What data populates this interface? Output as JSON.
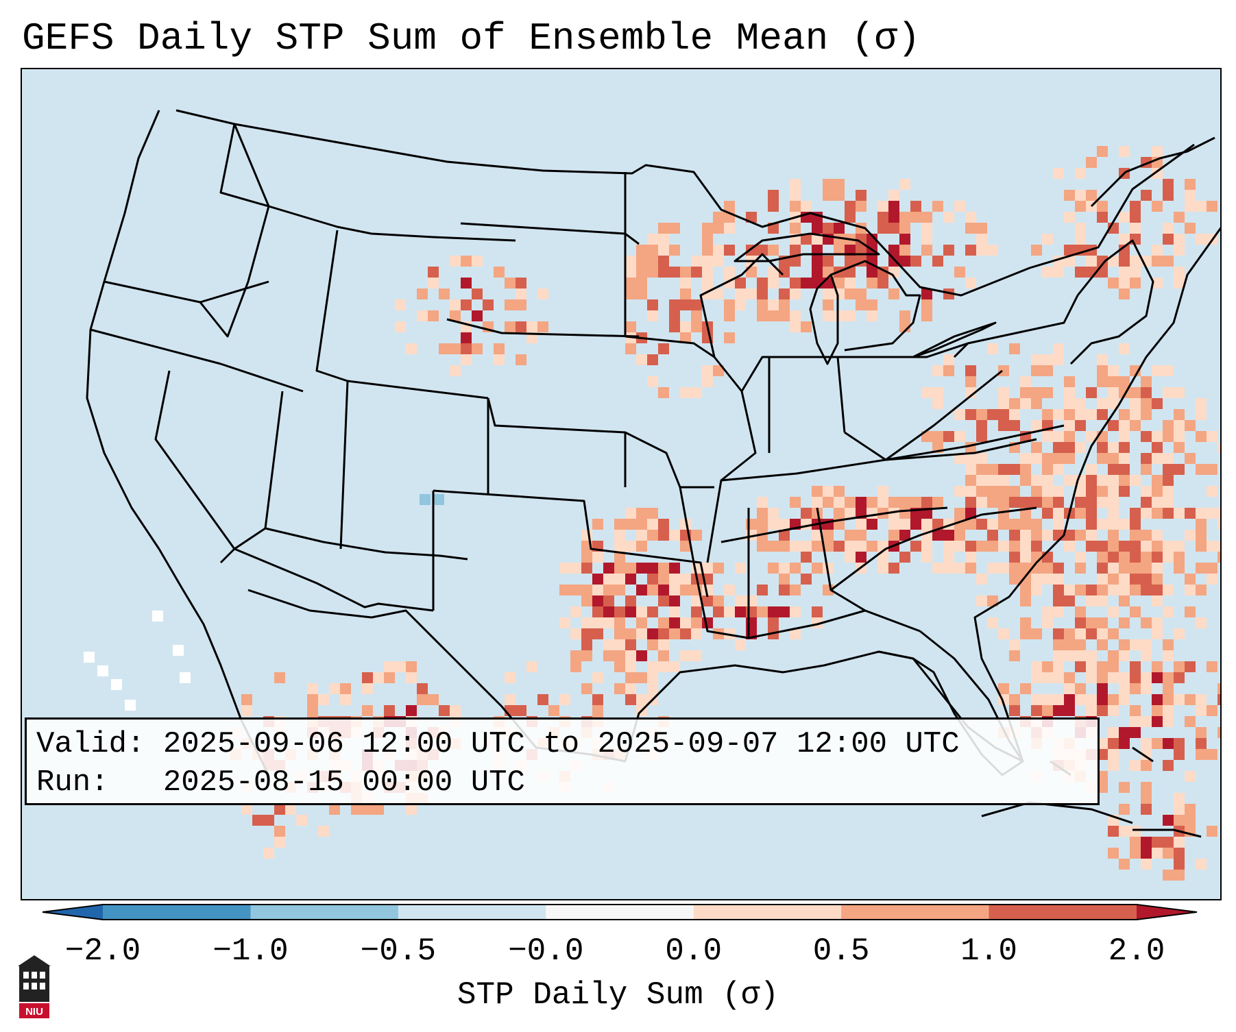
{
  "title": "GEFS Daily STP Sum of Ensemble Mean (σ)",
  "info": {
    "valid": "Valid: 2025-09-06 12:00 UTC to 2025-09-07 12:00 UTC",
    "run": "Run:   2025-08-15 00:00 UTC"
  },
  "colorbar": {
    "label": "STP Daily Sum (σ)",
    "ticks": [
      "−2.0",
      "−1.0",
      "−0.5",
      "−0.0",
      "0.0",
      "0.5",
      "1.0",
      "2.0"
    ],
    "colors": [
      "#4393c3",
      "#92c5de",
      "#d1e5f0",
      "#f7f7f7",
      "#fddbc7",
      "#f4a582",
      "#d6604d"
    ],
    "extend_low_color": "#2166ac",
    "extend_high_color": "#b2182b"
  },
  "map": {
    "background_color": "#d1e5f0",
    "hotspots": [
      {
        "region": "Southern Plains (Oklahoma / north Texas)",
        "intensity": "high"
      },
      {
        "region": "Ohio Valley / Kentucky / Tennessee",
        "intensity": "high"
      },
      {
        "region": "Mid-Atlantic coast / western Atlantic",
        "intensity": "moderate to high"
      },
      {
        "region": "Upper Midwest / Great Lakes / Ontario",
        "intensity": "moderate"
      },
      {
        "region": "Northern Rockies / High Plains",
        "intensity": "scattered"
      },
      {
        "region": "Northern Mexico",
        "intensity": "scattered"
      }
    ]
  },
  "logo": {
    "text": "NIU",
    "icon": "university-building-icon"
  }
}
